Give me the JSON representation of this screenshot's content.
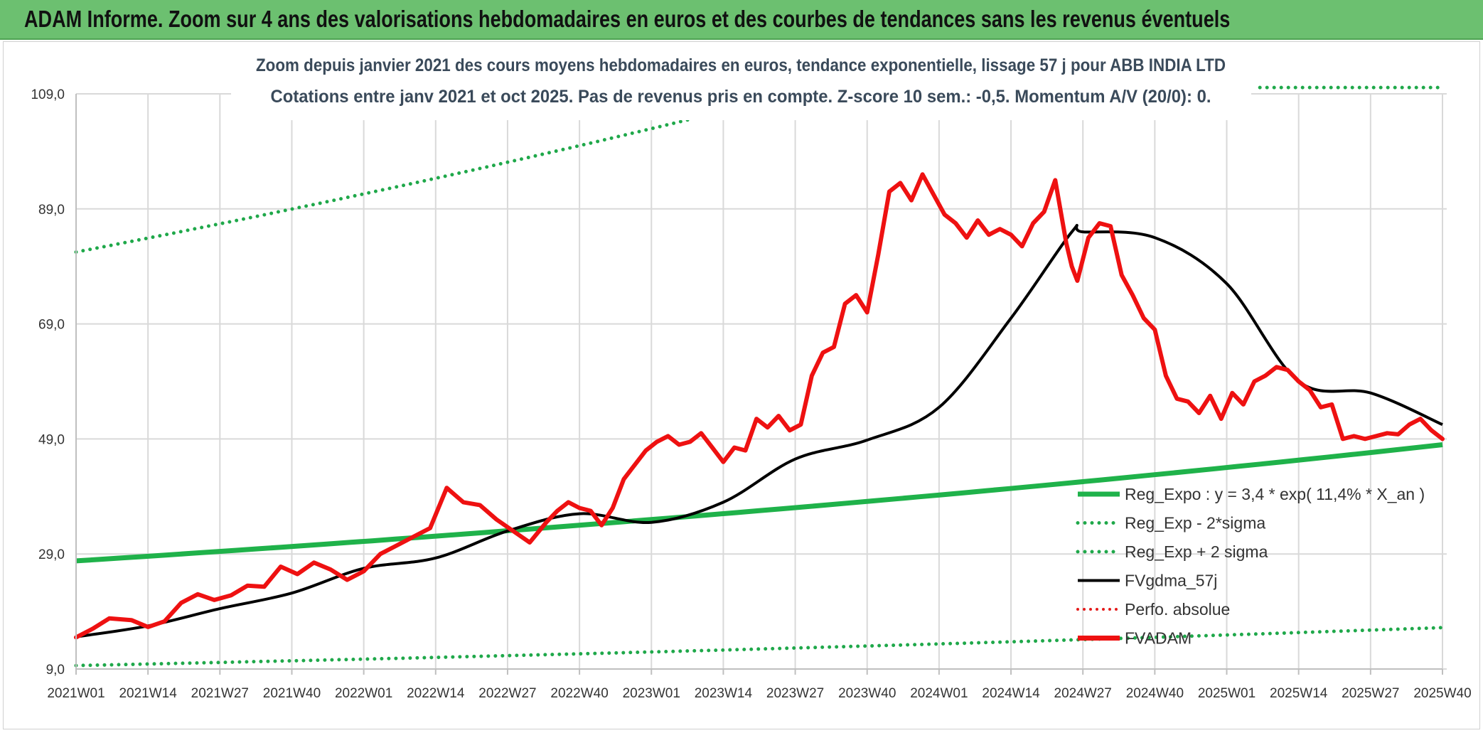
{
  "header": {
    "banner_title": "ADAM Informe. Zoom sur 4 ans des valorisations hebdomadaires en euros et des courbes de tendances sans les revenus éventuels"
  },
  "colors": {
    "banner": "#6cc070",
    "reg_expo": "#1fb24a",
    "sigma": "#1fa84a",
    "gdma": "#000000",
    "perfo": "#e41a1a",
    "fvadam": "#ee1111",
    "grid": "#d9d9d9"
  },
  "chart_data": {
    "type": "line",
    "title": "Zoom depuis janvier 2021 des cours moyens hebdomadaires en euros, tendance exponentielle, lissage 57 j pour ABB INDIA LTD",
    "subtitle": "Cotations entre janv 2021 et oct 2025. Pas de revenus pris en compte. Z-score 10 sem.: -0,5. Momentum A/V (20/0): 0.",
    "ylim": [
      9,
      109
    ],
    "y_ticks": [
      "109,0",
      "89,0",
      "69,0",
      "49,0",
      "29,0",
      "9,0"
    ],
    "y_tick_values": [
      109,
      89,
      69,
      49,
      29,
      9
    ],
    "x_tick_labels": [
      "2021W01",
      "2021W14",
      "2021W27",
      "2021W40",
      "2022W01",
      "2022W14",
      "2022W27",
      "2022W40",
      "2023W01",
      "2023W14",
      "2023W27",
      "2023W40",
      "2024W01",
      "2024W14",
      "2024W27",
      "2024W40",
      "2025W01",
      "2025W14",
      "2025W27",
      "2025W40"
    ],
    "x_range_weeks": [
      0,
      247
    ],
    "legend": [
      {
        "label": "Reg_Expo : y = 3,4 * exp( 11,4% *  X_an )",
        "style": "solid-green"
      },
      {
        "label": "Reg_Exp - 2*sigma",
        "style": "dotted-green"
      },
      {
        "label": "Reg_Exp + 2 sigma",
        "style": "dotted-green"
      },
      {
        "label": "FVgdma_57j",
        "style": "solid-black"
      },
      {
        "label": "Perfo. absolue",
        "style": "dotted-red"
      },
      {
        "label": "FVADAM",
        "style": "solid-red-thick"
      }
    ],
    "series": [
      {
        "name": "Reg_Expo",
        "x": [
          0,
          247
        ],
        "values": [
          27.8,
          48.0
        ]
      },
      {
        "name": "Reg_Exp - 2*sigma",
        "x": [
          0,
          247
        ],
        "values": [
          9.6,
          16.2
        ]
      },
      {
        "name": "Reg_Exp + 2 sigma",
        "x": [
          0,
          117
        ],
        "values": [
          81.5,
          106.0
        ]
      },
      {
        "name": "Reg_Exp + 2 sigma (upper segment)",
        "x": [
          214,
          247
        ],
        "values": [
          110.1,
          110.1
        ]
      },
      {
        "name": "FVgdma_57j",
        "x": [
          0,
          13,
          26,
          39,
          52,
          65,
          78,
          91,
          104,
          117,
          130,
          143,
          156,
          169,
          180,
          182,
          195,
          208,
          221,
          234,
          247
        ],
        "values": [
          14.6,
          16.5,
          19.5,
          22.2,
          26.5,
          28.3,
          33.0,
          36.0,
          34.5,
          38.0,
          45.5,
          48.8,
          54.5,
          70.0,
          85.0,
          85.0,
          84.0,
          76.0,
          59.0,
          57.0,
          51.5
        ]
      },
      {
        "name": "FVADAM",
        "x": [
          0,
          3,
          6,
          10,
          13,
          16,
          19,
          22,
          25,
          28,
          31,
          34,
          37,
          40,
          43,
          46,
          49,
          52,
          55,
          58,
          61,
          64,
          67,
          70,
          73,
          76,
          79,
          82,
          85,
          87,
          89,
          91,
          93,
          95,
          97,
          99,
          101,
          103,
          105,
          107,
          109,
          111,
          113,
          115,
          117,
          119,
          121,
          123,
          125,
          127,
          129,
          131,
          133,
          135,
          137,
          139,
          141,
          143,
          145,
          147,
          149,
          151,
          153,
          155,
          157,
          159,
          161,
          163,
          165,
          167,
          169,
          171,
          173,
          175,
          177,
          179,
          180,
          181,
          183,
          185,
          187,
          189,
          191,
          193,
          195,
          197,
          199,
          201,
          203,
          205,
          207,
          209,
          211,
          213,
          215,
          217,
          219,
          221,
          223,
          225,
          227,
          229,
          231,
          233,
          235,
          237,
          239,
          241,
          243,
          245,
          247
        ],
        "values": [
          14.5,
          16.0,
          17.8,
          17.5,
          16.3,
          17.3,
          20.5,
          22.0,
          21.0,
          21.8,
          23.5,
          23.3,
          26.8,
          25.5,
          27.5,
          26.3,
          24.5,
          26.0,
          29.0,
          30.5,
          32.0,
          33.5,
          40.5,
          38.0,
          37.5,
          35.0,
          33.0,
          31.0,
          34.5,
          36.5,
          38.0,
          37.0,
          36.5,
          34.0,
          37.0,
          42.0,
          44.5,
          47.0,
          48.5,
          49.5,
          48.0,
          48.5,
          50.0,
          47.5,
          45.0,
          47.5,
          47.0,
          52.5,
          51.0,
          53.0,
          50.5,
          51.5,
          60.0,
          64.0,
          65.0,
          72.5,
          74.0,
          71.0,
          81.0,
          92.0,
          93.5,
          90.5,
          95.0,
          91.5,
          88.0,
          86.5,
          84.0,
          87.0,
          84.5,
          85.5,
          84.5,
          82.5,
          86.5,
          88.5,
          94.0,
          83.0,
          79.0,
          76.5,
          84.0,
          86.5,
          86.0,
          77.5,
          74.0,
          70.0,
          68.0,
          60.0,
          56.0,
          55.5,
          53.5,
          56.5,
          52.5,
          57.0,
          55.0,
          59.0,
          60.0,
          61.5,
          61.0,
          59.0,
          57.5,
          54.5,
          55.0,
          49.0,
          49.5,
          49.0,
          49.5,
          50.0,
          49.8,
          51.5,
          52.5,
          50.5,
          49.0
        ]
      }
    ]
  }
}
